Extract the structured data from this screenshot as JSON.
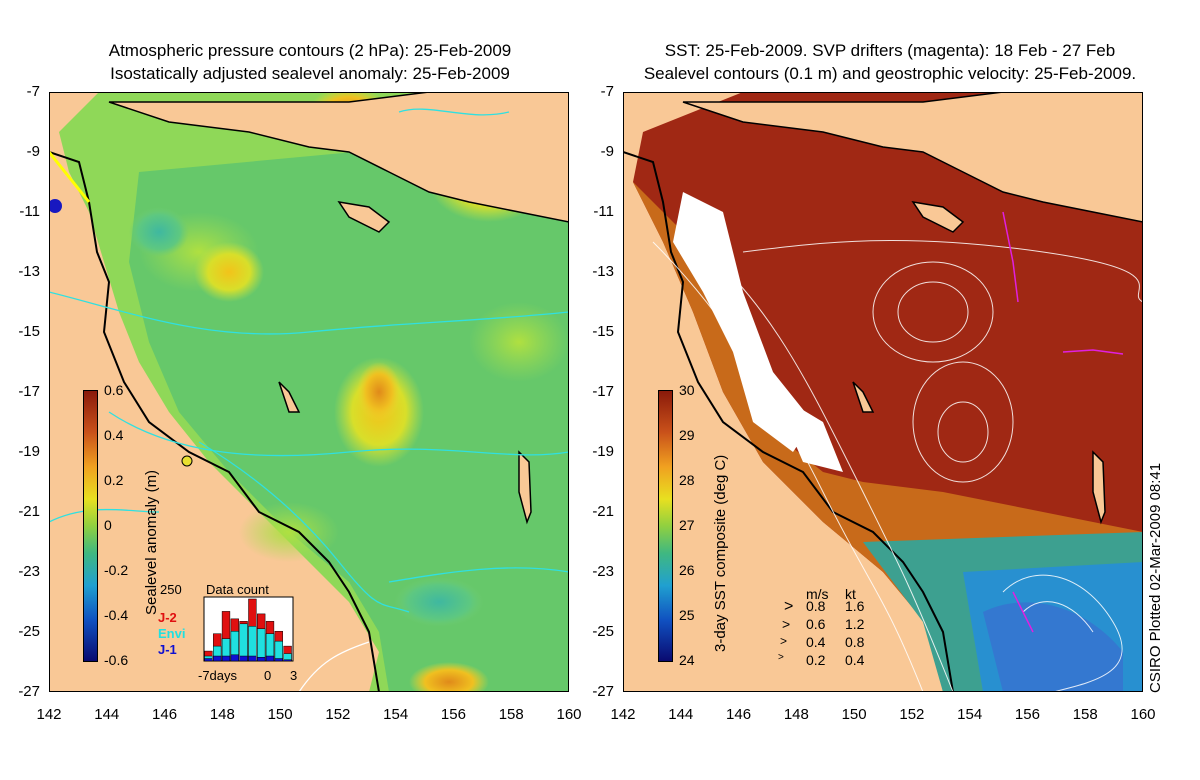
{
  "left_panel": {
    "title_line1": "Atmospheric pressure contours (2 hPa): 25-Feb-2009",
    "title_line2": "Isostatically adjusted sealevel anomaly: 25-Feb-2009",
    "colorbar_title": "Sealevel anomaly (m)",
    "colorbar_ticks": [
      "0.6",
      "0.4",
      "0.2",
      "0",
      "-0.2",
      "-0.4",
      "-0.6"
    ],
    "inset_title": "Data count",
    "inset_ymax": "250",
    "legend": [
      {
        "label": "J-2",
        "color": "#e01010"
      },
      {
        "label": "Envi",
        "color": "#20e0e0"
      },
      {
        "label": "J-1",
        "color": "#1010d0"
      }
    ],
    "inset_x_labels": [
      "-7days",
      "0",
      "3"
    ]
  },
  "right_panel": {
    "title_line1": "SST: 25-Feb-2009. SVP drifters (magenta): 18 Feb - 27 Feb",
    "title_line2": "Sealevel contours (0.1 m) and geostrophic velocity: 25-Feb-2009.",
    "colorbar_title": "3-day SST composite (deg C)",
    "colorbar_ticks": [
      "30",
      "29",
      "28",
      "27",
      "26",
      "25",
      "24"
    ],
    "velocity_header": [
      "m/s",
      "kt"
    ],
    "velocity_scale": [
      {
        "ms": "0.8",
        "kt": "1.6"
      },
      {
        "ms": "0.6",
        "kt": "1.2"
      },
      {
        "ms": "0.4",
        "kt": "0.8"
      },
      {
        "ms": "0.2",
        "kt": "0.4"
      }
    ]
  },
  "credit": "CSIRO Plotted 02-Mar-2009 08:41",
  "axes": {
    "y_ticks": [
      "-7",
      "-9",
      "-11",
      "-13",
      "-15",
      "-17",
      "-19",
      "-21",
      "-23",
      "-25",
      "-27"
    ],
    "x_ticks": [
      "142",
      "144",
      "146",
      "148",
      "150",
      "152",
      "154",
      "156",
      "158",
      "160"
    ]
  },
  "chart_data": [
    {
      "type": "heatmap",
      "title": "Atmospheric pressure contours (2 hPa): 25-Feb-2009 / Isostatically adjusted sealevel anomaly: 25-Feb-2009",
      "xlim": [
        142,
        160
      ],
      "ylim": [
        -27,
        -7
      ],
      "colorbar_label": "Sealevel anomaly (m)",
      "colorbar_range": [
        -0.6,
        0.6
      ],
      "data_count_histogram": {
        "x_range": [
          -7,
          3
        ],
        "ymax": 250,
        "series": [
          {
            "name": "J-2",
            "values": [
              40,
              110,
              200,
              170,
              160,
              250,
              190,
              160,
              120,
              60
            ]
          },
          {
            "name": "Envi",
            "values": [
              20,
              60,
              90,
              120,
              150,
              140,
              130,
              110,
              80,
              30
            ]
          },
          {
            "name": "J-1",
            "values": [
              10,
              20,
              20,
              25,
              20,
              20,
              15,
              20,
              10,
              5
            ]
          }
        ]
      }
    },
    {
      "type": "heatmap",
      "title": "SST: 25-Feb-2009. SVP drifters (magenta): 18 Feb - 27 Feb / Sealevel contours (0.1 m) and geostrophic velocity: 25-Feb-2009.",
      "xlim": [
        142,
        160
      ],
      "ylim": [
        -27,
        -7
      ],
      "colorbar_label": "3-day SST composite (deg C)",
      "colorbar_range": [
        24,
        30
      ],
      "velocity_scale_ms": [
        0.8,
        0.6,
        0.4,
        0.2
      ],
      "velocity_scale_kt": [
        1.6,
        1.2,
        0.8,
        0.4
      ]
    }
  ]
}
